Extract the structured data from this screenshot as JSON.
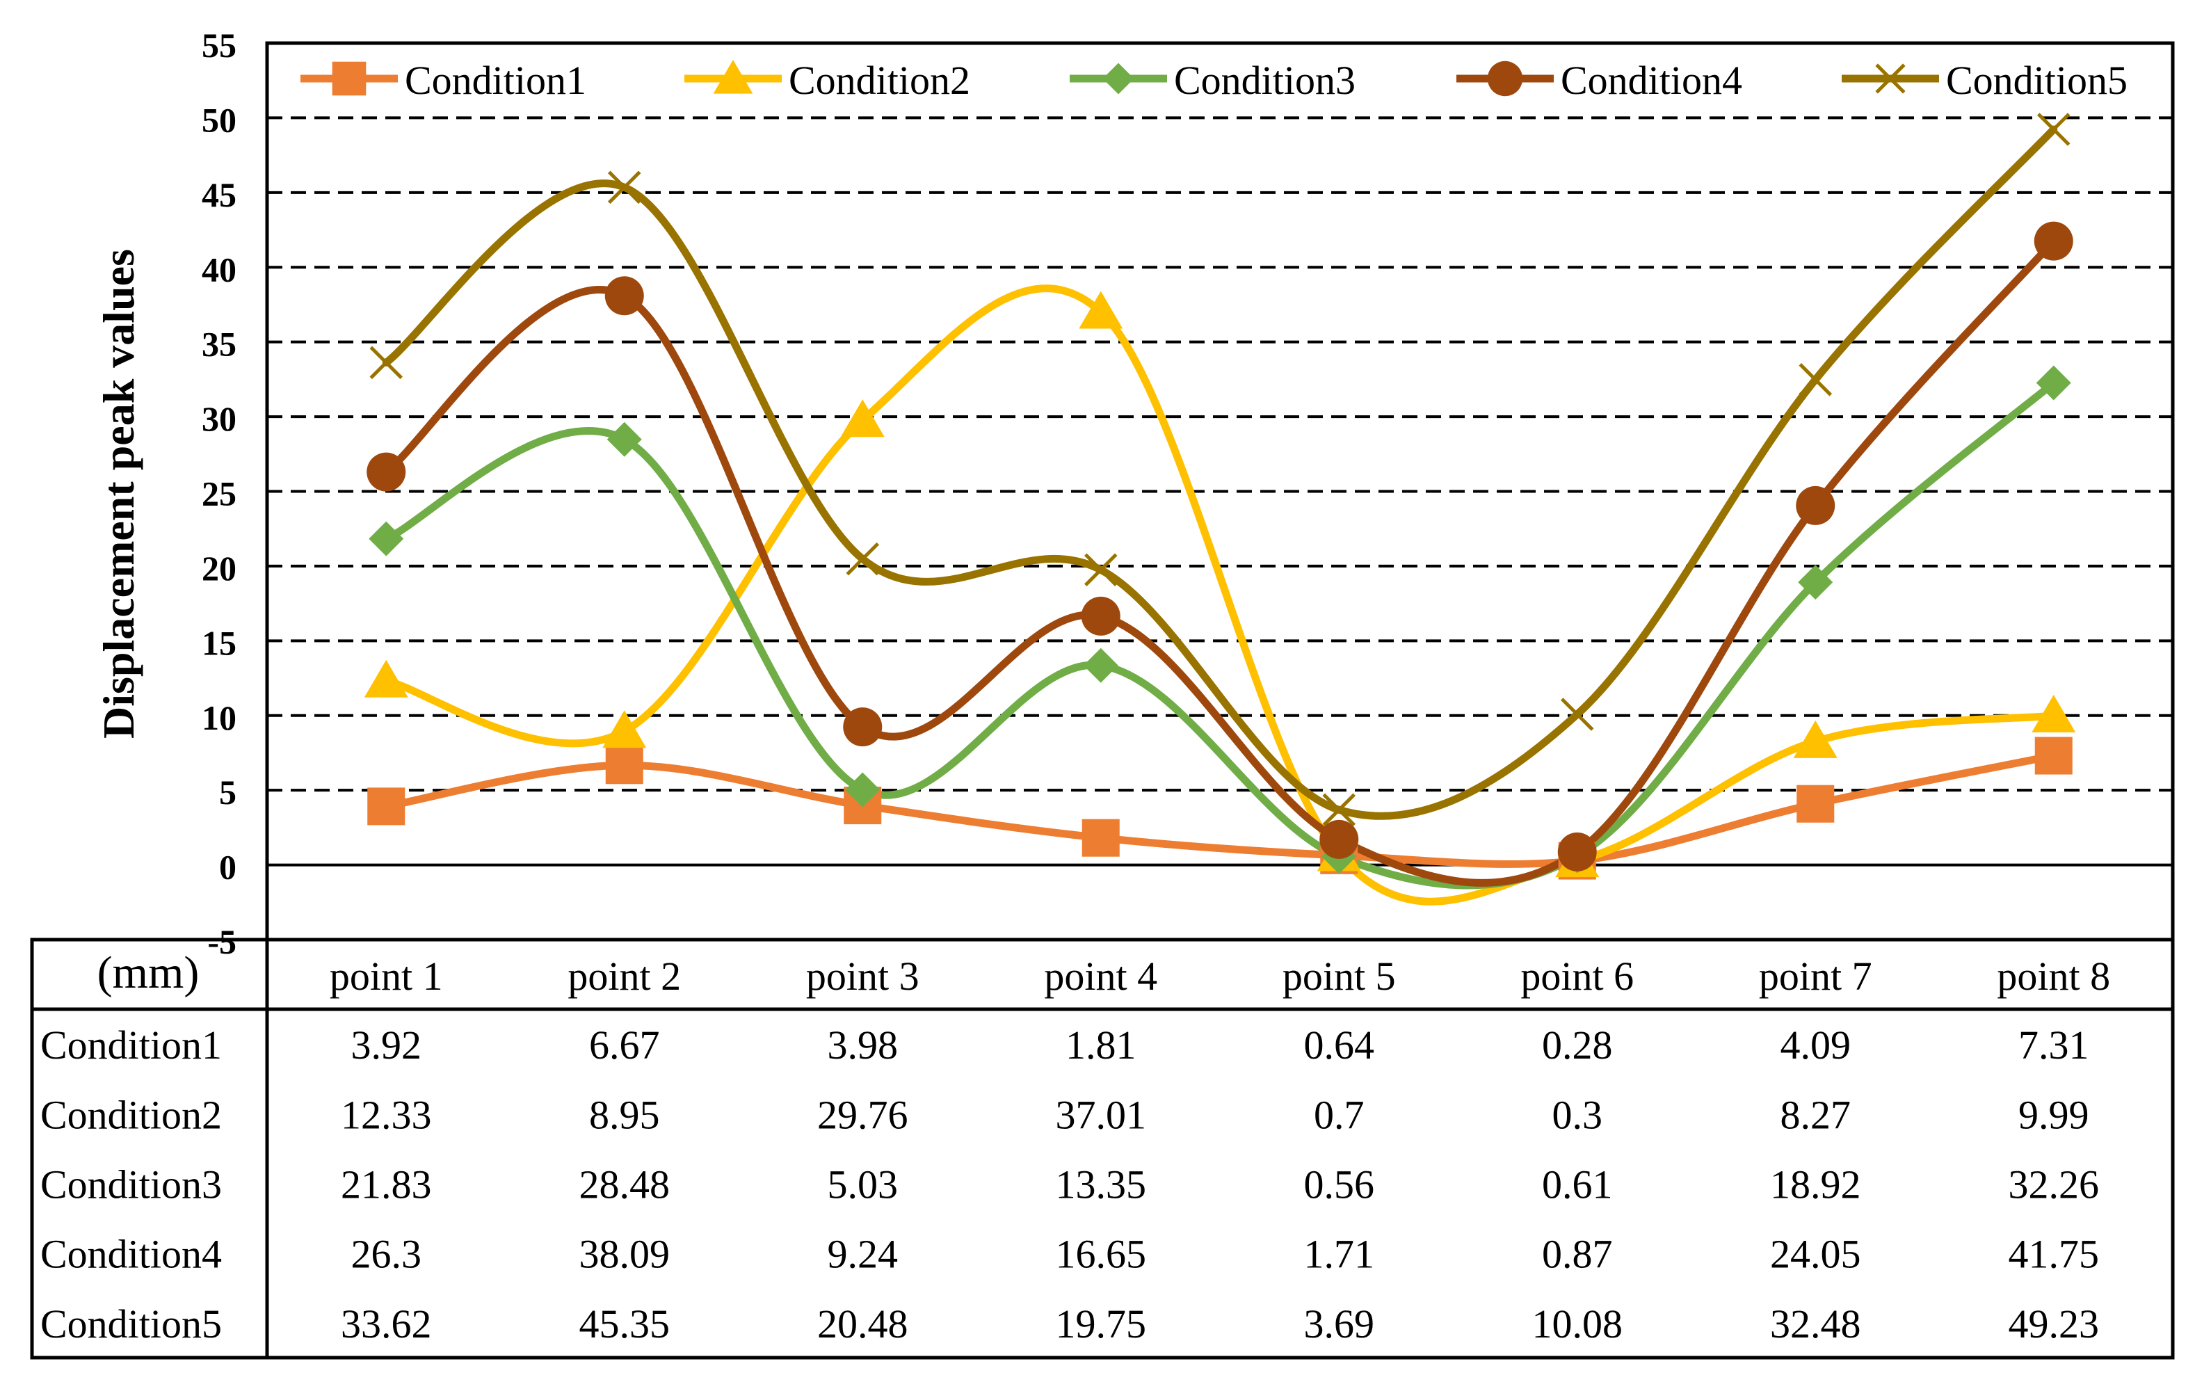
{
  "chart_data": {
    "type": "line",
    "smooth": true,
    "title": "",
    "ylabel": "Displacement peak values",
    "unit_label": "(mm)",
    "ylim": [
      -5,
      55
    ],
    "yticks": [
      55,
      50,
      45,
      40,
      35,
      30,
      25,
      20,
      15,
      10,
      5,
      0,
      -5
    ],
    "categories": [
      "point 1",
      "point 2",
      "point 3",
      "point 4",
      "point 5",
      "point 6",
      "point 7",
      "point 8"
    ],
    "legend_position": "top",
    "grid": "dashed horizontal",
    "series": [
      {
        "name": "Condition1",
        "color": "#ED7D31",
        "marker": "square",
        "values": [
          3.92,
          6.67,
          3.98,
          1.81,
          0.64,
          0.28,
          4.09,
          7.31
        ],
        "labels": [
          "3.92",
          "6.67",
          "3.98",
          "1.81",
          "0.64",
          "0.28",
          "4.09",
          "7.31"
        ]
      },
      {
        "name": "Condition2",
        "color": "#FFC000",
        "marker": "triangle",
        "values": [
          12.33,
          8.95,
          29.76,
          37.01,
          0.7,
          0.3,
          8.27,
          9.99
        ],
        "labels": [
          "12.33",
          "8.95",
          "29.76",
          "37.01",
          "0.7",
          "0.3",
          "8.27",
          "9.99"
        ]
      },
      {
        "name": "Condition3",
        "color": "#70AD47",
        "marker": "diamond",
        "values": [
          21.83,
          28.48,
          5.03,
          13.35,
          0.56,
          0.61,
          18.92,
          32.26
        ],
        "labels": [
          "21.83",
          "28.48",
          "5.03",
          "13.35",
          "0.56",
          "0.61",
          "18.92",
          "32.26"
        ]
      },
      {
        "name": "Condition4",
        "color": "#9E480E",
        "marker": "circle",
        "values": [
          26.3,
          38.09,
          9.24,
          16.65,
          1.71,
          0.87,
          24.05,
          41.75
        ],
        "labels": [
          "26.3",
          "38.09",
          "9.24",
          "16.65",
          "1.71",
          "0.87",
          "24.05",
          "41.75"
        ]
      },
      {
        "name": "Condition5",
        "color": "#997300",
        "marker": "x",
        "values": [
          33.62,
          45.35,
          20.48,
          19.75,
          3.69,
          10.08,
          32.48,
          49.23
        ],
        "labels": [
          "33.62",
          "45.35",
          "20.48",
          "19.75",
          "3.69",
          "10.08",
          "32.48",
          "49.23"
        ]
      }
    ]
  }
}
